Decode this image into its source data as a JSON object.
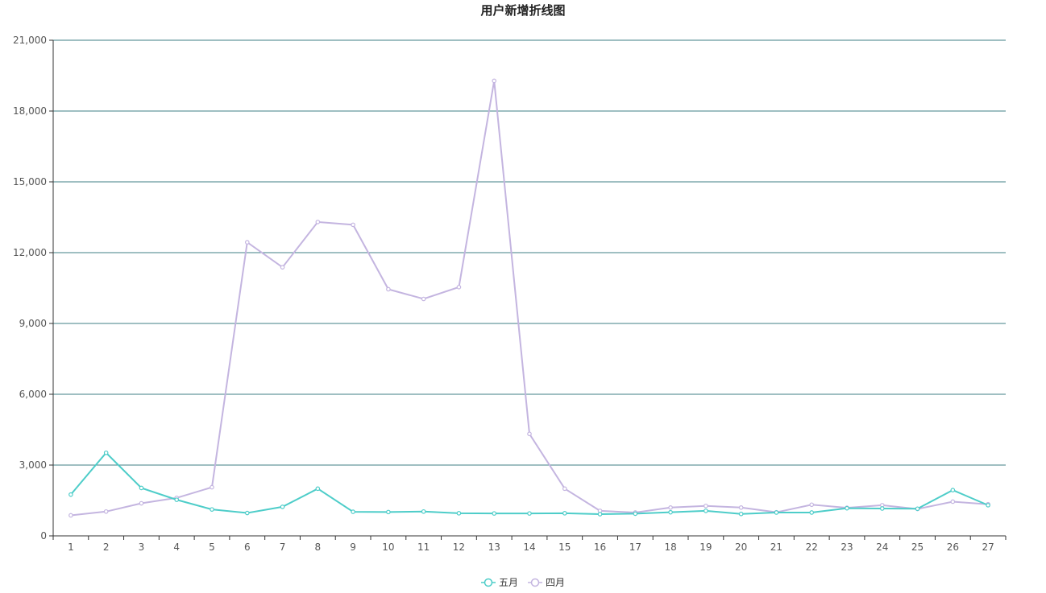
{
  "chart_data": {
    "type": "line",
    "title": "用户新增折线图",
    "xlabel": "",
    "ylabel": "",
    "categories": [
      "1",
      "2",
      "3",
      "4",
      "5",
      "6",
      "7",
      "8",
      "9",
      "10",
      "11",
      "12",
      "13",
      "14",
      "15",
      "16",
      "17",
      "18",
      "19",
      "20",
      "21",
      "22",
      "23",
      "24",
      "25",
      "26",
      "27"
    ],
    "ylim": [
      0,
      21000
    ],
    "yticks": [
      "0",
      "3,000",
      "6,000",
      "9,000",
      "12,000",
      "15,000",
      "18,000",
      "21,000"
    ],
    "ytick_values": [
      0,
      3000,
      6000,
      9000,
      12000,
      15000,
      18000,
      21000
    ],
    "grid": true,
    "legend_position": "bottom-center",
    "series": [
      {
        "name": "五月",
        "color": "#4ecdc9",
        "values": [
          1750,
          3520,
          2030,
          1530,
          1120,
          970,
          1230,
          2000,
          1020,
          1010,
          1030,
          960,
          950,
          950,
          960,
          920,
          940,
          1000,
          1060,
          930,
          990,
          990,
          1170,
          1160,
          1150,
          1940,
          1300
        ]
      },
      {
        "name": "四月",
        "color": "#c4b5e0",
        "values": [
          870,
          1030,
          1380,
          1610,
          2060,
          12440,
          11380,
          13300,
          13180,
          10450,
          10040,
          10540,
          19280,
          4320,
          2000,
          1060,
          990,
          1200,
          1270,
          1200,
          1000,
          1320,
          1190,
          1300,
          1140,
          1450,
          1340
        ]
      }
    ]
  }
}
